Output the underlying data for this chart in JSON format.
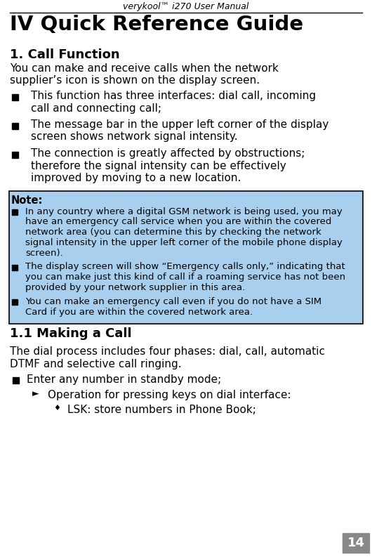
{
  "header_text": "verykool™ i270 User Manual",
  "title": "IV Quick Reference Guide",
  "section": "1. Call Function",
  "intro_lines": [
    "You can make and receive calls when the network",
    "supplier’s icon is shown on the display screen."
  ],
  "bullet1_lines": [
    "This function has three interfaces: dial call, incoming",
    "call and connecting call;"
  ],
  "bullet2_lines": [
    "The message bar in the upper left corner of the display",
    "screen shows network signal intensity."
  ],
  "bullet3_lines": [
    "The connection is greatly affected by obstructions;",
    "therefore the signal intensity can be effectively",
    "improved by moving to a new location."
  ],
  "note_label": "Note:",
  "note_b1_lines": [
    "In any country where a digital GSM network is being used, you may",
    "have an emergency call service when you are within the covered",
    "network area (you can determine this by checking the network",
    "signal intensity in the upper left corner of the mobile phone display",
    "screen)."
  ],
  "note_b2_lines": [
    "The display screen will show “Emergency calls only,” indicating that",
    "you can make just this kind of call if a roaming service has not been",
    "provided by your network supplier in this area."
  ],
  "note_b3_lines": [
    "You can make an emergency call even if you do not have a SIM",
    "Card if you are within the covered network area."
  ],
  "subsection": "1.1 Making a Call",
  "sub_intro_lines": [
    "The dial process includes four phases: dial, call, automatic",
    "DTMF and selective call ringing."
  ],
  "sub_bullet1": "Enter any number in standby mode;",
  "sub_sub_bullet1": "Operation for pressing keys on dial interface:",
  "sub_sub_sub_bullet1": "LSK: store numbers in Phone Book;",
  "page_number": "14",
  "bg_color": "#ffffff",
  "note_bg_color": "#a8d0ee",
  "note_border_color": "#000000",
  "header_line_color": "#000000",
  "text_color": "#000000",
  "page_num_bg": "#888888",
  "page_num_color": "#ffffff"
}
